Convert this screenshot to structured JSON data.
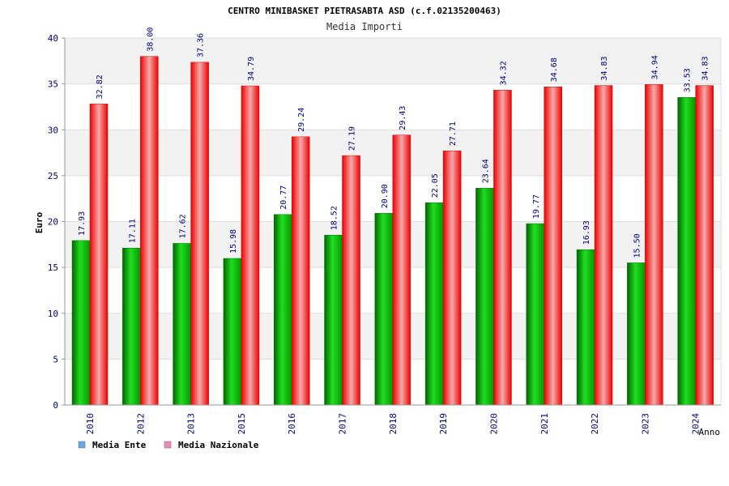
{
  "chart_data": {
    "type": "bar",
    "title": "CENTRO MINIBASKET PIETRASABTA ASD (c.f.02135200463)",
    "subtitle": "Media Importi",
    "xlabel": "Anno",
    "ylabel": "Euro",
    "ylim": [
      0,
      40
    ],
    "yticks": [
      0,
      5,
      10,
      15,
      20,
      25,
      30,
      35,
      40
    ],
    "grid": true,
    "legend_position": "bottom-left",
    "categories": [
      "2010",
      "2012",
      "2013",
      "2015",
      "2016",
      "2017",
      "2018",
      "2019",
      "2020",
      "2021",
      "2022",
      "2023",
      "2024"
    ],
    "series": [
      {
        "name": "Media Ente",
        "color": "#00aa00",
        "values": [
          17.93,
          17.11,
          17.62,
          15.98,
          20.77,
          18.52,
          20.9,
          22.05,
          23.64,
          19.77,
          16.93,
          15.5,
          33.53
        ],
        "labels": [
          "17.93",
          "17.11",
          "17.62",
          "15.98",
          "20.77",
          "18.52",
          "20.90",
          "22.05",
          "23.64",
          "19.77",
          "16.93",
          "15.50",
          "33.53"
        ]
      },
      {
        "name": "Media Nazionale",
        "color": "#ff0000",
        "values": [
          32.82,
          38.0,
          37.36,
          34.79,
          29.24,
          27.19,
          29.43,
          27.71,
          34.32,
          34.68,
          34.83,
          34.94,
          34.83
        ],
        "labels": [
          "32.82",
          "38.00",
          "37.36",
          "34.79",
          "29.24",
          "27.19",
          "29.43",
          "27.71",
          "34.32",
          "34.68",
          "34.83",
          "34.94",
          "34.83"
        ]
      }
    ],
    "legend_swatch_colors": [
      "#66aaee",
      "#ee88bb"
    ]
  }
}
